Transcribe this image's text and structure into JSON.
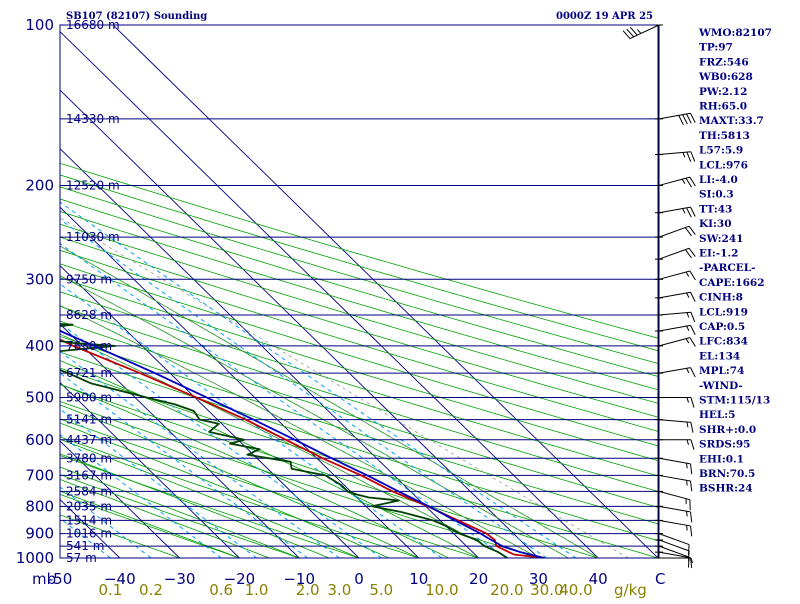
{
  "header": {
    "station": "SB107 (82107) Sounding",
    "time": "0000Z 19 APR 25"
  },
  "indices": [
    "WMO:82107",
    "TP:97",
    "FRZ:546",
    "WB0:628",
    "PW:2.12",
    "RH:65.0",
    "MAXT:33.7",
    "TH:5813",
    "L57:5.9",
    "LCL:976",
    "LI:-4.0",
    "SI:0.3",
    "TT:43",
    "KI:30",
    "SW:241",
    "EI:-1.2",
    "-PARCEL-",
    "CAPE:1662",
    "CINH:8",
    "LCL:919",
    "CAP:0.5",
    "LFC:834",
    "EL:134",
    "MPL:74",
    "-WIND-",
    "STM:115/13",
    "HEL:5",
    "SHR+:0.0",
    "SRDS:95",
    "EHI:0.1",
    "BRN:70.5",
    "BSHR:24"
  ],
  "axis": {
    "pressure_unit": "mb",
    "mixing_ratio_unit": "g/kg",
    "temp_unit": "C"
  },
  "colors": {
    "isobar": "#000080",
    "isotherm": "#000080",
    "dry_adiabat": "#00a000",
    "moist_adiabat": "#00a000",
    "mixing_ratio": "#00a0ff",
    "temperature": "#c00000",
    "dewpoint": "#004000",
    "parcel": "#0000c0",
    "labels": "#000080",
    "mixing_ratio_labels": "#8a8000"
  },
  "chart_data": {
    "type": "line",
    "chart_kind": "skew-T log-P sounding",
    "pressure_levels": [
      100,
      200,
      300,
      400,
      500,
      600,
      700,
      800,
      900,
      1000
    ],
    "height_labels": [
      {
        "p": 100,
        "label": "16680 m"
      },
      {
        "p": 150,
        "label": "14330 m"
      },
      {
        "p": 200,
        "label": "12520 m"
      },
      {
        "p": 250,
        "label": "11030 m"
      },
      {
        "p": 300,
        "label": "9750 m"
      },
      {
        "p": 350,
        "label": "8628 m"
      },
      {
        "p": 400,
        "label": "7630 m"
      },
      {
        "p": 450,
        "label": "6721 m"
      },
      {
        "p": 500,
        "label": "5900 m"
      },
      {
        "p": 550,
        "label": "5141 m"
      },
      {
        "p": 600,
        "label": "4437 m"
      },
      {
        "p": 650,
        "label": "3780 m"
      },
      {
        "p": 700,
        "label": "3167 m"
      },
      {
        "p": 750,
        "label": "2584 m"
      },
      {
        "p": 800,
        "label": "2035 m"
      },
      {
        "p": 850,
        "label": "1514 m"
      },
      {
        "p": 900,
        "label": "1016 m"
      },
      {
        "p": 950,
        "label": "541 m"
      },
      {
        "p": 1000,
        "label": "57 m"
      }
    ],
    "temp_ticks": [
      -50,
      -40,
      -30,
      -20,
      -10,
      0,
      10,
      20,
      30,
      40
    ],
    "temp_tick_labels": [
      "-50",
      "−40",
      "−30",
      "−20",
      "−10",
      "0",
      "10",
      "20",
      "30",
      "40"
    ],
    "mixing_ratio_ticks": [
      0.1,
      0.2,
      0.6,
      1.0,
      2.0,
      3.0,
      5.0,
      10.0,
      20.0,
      30.0,
      40.0
    ],
    "mixing_ratio_labels": [
      "0.1",
      "0.2",
      "0.6",
      "1.0",
      "2.0",
      "3.0",
      "5.0",
      "10.0",
      "20.0",
      "30.0",
      "40.0"
    ],
    "temp_range": [
      -50,
      50
    ],
    "pressure_range": [
      100,
      1000
    ],
    "series": [
      {
        "key": "temperature",
        "points": [
          [
            1000,
            31.0
          ],
          [
            985,
            26.5
          ],
          [
            950,
            25.0
          ],
          [
            925,
            25.8
          ],
          [
            900,
            25.5
          ],
          [
            850,
            23.0
          ],
          [
            800,
            20.3
          ],
          [
            750,
            17.0
          ],
          [
            700,
            14.5
          ],
          [
            650,
            11.0
          ],
          [
            600,
            8.0
          ],
          [
            550,
            4.7
          ],
          [
            500,
            0.3
          ],
          [
            450,
            -5.0
          ],
          [
            400,
            -11.5
          ],
          [
            350,
            -17.0
          ],
          [
            330,
            -21.5
          ],
          [
            300,
            -28.0
          ],
          [
            250,
            -37.5
          ],
          [
            200,
            -48.5
          ],
          [
            175,
            -55.0
          ],
          [
            150,
            -60.5
          ],
          [
            125,
            -67.0
          ],
          [
            100,
            -75.0
          ]
        ]
      },
      {
        "key": "dewpoint",
        "points": [
          [
            1000,
            24.8
          ],
          [
            975,
            24.3
          ],
          [
            950,
            23.0
          ],
          [
            925,
            22.8
          ],
          [
            900,
            21.0
          ],
          [
            870,
            20.0
          ],
          [
            850,
            18.8
          ],
          [
            820,
            15.0
          ],
          [
            800,
            11.0
          ],
          [
            780,
            16.5
          ],
          [
            770,
            12.0
          ],
          [
            760,
            10.5
          ],
          [
            750,
            9.5
          ],
          [
            730,
            9.5
          ],
          [
            700,
            8.5
          ],
          [
            680,
            4.0
          ],
          [
            660,
            5.0
          ],
          [
            640,
            -1.0
          ],
          [
            625,
            2.0
          ],
          [
            610,
            -2.0
          ],
          [
            600,
            1.0
          ],
          [
            580,
            -3.5
          ],
          [
            560,
            -0.5
          ],
          [
            550,
            -3.0
          ],
          [
            530,
            -2.5
          ],
          [
            515,
            -4.5
          ],
          [
            500,
            -8.0
          ],
          [
            470,
            -15.0
          ],
          [
            450,
            -17.0
          ],
          [
            430,
            -20.0
          ],
          [
            420,
            -22.0
          ],
          [
            410,
            -15.5
          ],
          [
            400,
            -4.5
          ],
          [
            395,
            -11.0
          ],
          [
            380,
            -20.0
          ],
          [
            375,
            -11.0
          ],
          [
            370,
            -13.5
          ],
          [
            365,
            -8.0
          ],
          [
            360,
            -18.0
          ],
          [
            355,
            -10.0
          ],
          [
            350,
            -16.5
          ],
          [
            345,
            -24.0
          ],
          [
            340,
            -38.0
          ],
          [
            335,
            -29.0
          ],
          [
            330,
            -33.0
          ],
          [
            325,
            -20.5
          ],
          [
            320,
            -28.0
          ],
          [
            310,
            -26.0
          ],
          [
            300,
            -29.0
          ],
          [
            270,
            -31.0
          ],
          [
            260,
            -32.5
          ],
          [
            250,
            -39.0
          ],
          [
            235,
            -42.0
          ],
          [
            225,
            -45.0
          ],
          [
            215,
            -50.5
          ],
          [
            200,
            -57.0
          ],
          [
            190,
            -61.0
          ],
          [
            175,
            -70.0
          ],
          [
            160,
            -76.5
          ],
          [
            150,
            -80.0
          ],
          [
            125,
            -87.0
          ],
          [
            100,
            -97.0
          ]
        ]
      },
      {
        "key": "parcel",
        "points": [
          [
            1000,
            31.0
          ],
          [
            975,
            28.0
          ],
          [
            950,
            26.0
          ],
          [
            919,
            25.0
          ],
          [
            900,
            24.5
          ],
          [
            850,
            22.5
          ],
          [
            800,
            20.5
          ],
          [
            750,
            18.0
          ],
          [
            700,
            15.5
          ],
          [
            650,
            12.5
          ],
          [
            600,
            9.5
          ],
          [
            550,
            6.0
          ],
          [
            500,
            2.0
          ],
          [
            450,
            -2.5
          ],
          [
            400,
            -8.0
          ],
          [
            350,
            -14.5
          ],
          [
            300,
            -22.5
          ],
          [
            250,
            -32.5
          ],
          [
            200,
            -45.0
          ],
          [
            175,
            -52.0
          ],
          [
            150,
            -59.5
          ],
          [
            125,
            -69.0
          ]
        ]
      }
    ],
    "wind_profile": [
      {
        "p": 100,
        "dir": 245,
        "spd": 35
      },
      {
        "p": 150,
        "dir": 80,
        "spd": 40
      },
      {
        "p": 175,
        "dir": 85,
        "spd": 25
      },
      {
        "p": 200,
        "dir": 75,
        "spd": 25
      },
      {
        "p": 225,
        "dir": 80,
        "spd": 25
      },
      {
        "p": 250,
        "dir": 70,
        "spd": 20
      },
      {
        "p": 275,
        "dir": 70,
        "spd": 20
      },
      {
        "p": 300,
        "dir": 75,
        "spd": 15
      },
      {
        "p": 325,
        "dir": 80,
        "spd": 15
      },
      {
        "p": 350,
        "dir": 85,
        "spd": 15
      },
      {
        "p": 375,
        "dir": 80,
        "spd": 15
      },
      {
        "p": 400,
        "dir": 75,
        "spd": 15
      },
      {
        "p": 450,
        "dir": 80,
        "spd": 15
      },
      {
        "p": 500,
        "dir": 90,
        "spd": 15
      },
      {
        "p": 550,
        "dir": 95,
        "spd": 15
      },
      {
        "p": 600,
        "dir": 90,
        "spd": 15
      },
      {
        "p": 650,
        "dir": 100,
        "spd": 15
      },
      {
        "p": 700,
        "dir": 100,
        "spd": 15
      },
      {
        "p": 750,
        "dir": 105,
        "spd": 15
      },
      {
        "p": 800,
        "dir": 100,
        "spd": 15
      },
      {
        "p": 850,
        "dir": 100,
        "spd": 15
      },
      {
        "p": 900,
        "dir": 110,
        "spd": 10
      },
      {
        "p": 925,
        "dir": 110,
        "spd": 10
      },
      {
        "p": 950,
        "dir": 110,
        "spd": 10
      },
      {
        "p": 975,
        "dir": 100,
        "spd": 10
      },
      {
        "p": 1000,
        "dir": 90,
        "spd": 5
      }
    ]
  }
}
